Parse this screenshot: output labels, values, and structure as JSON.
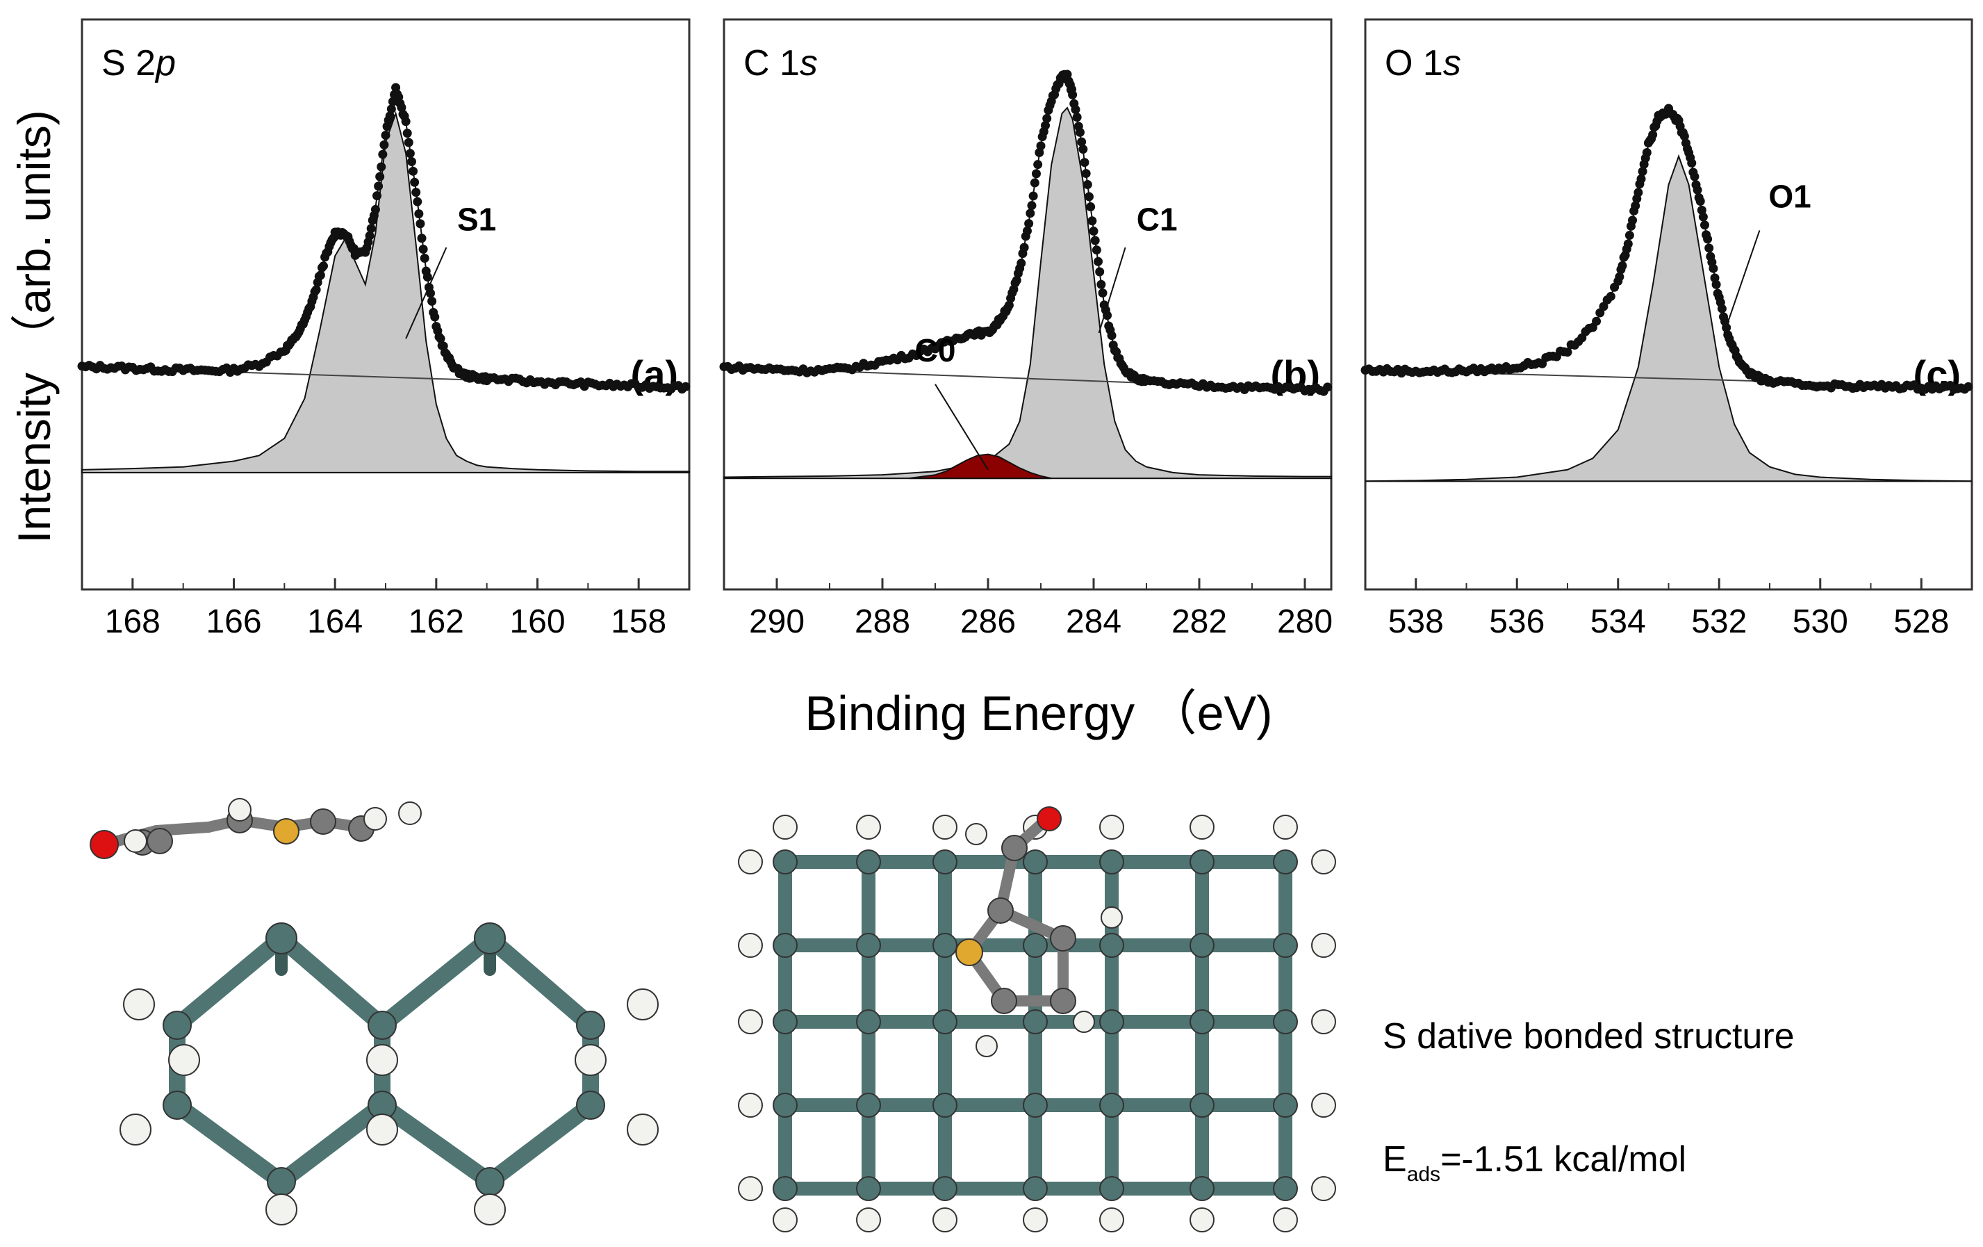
{
  "figure": {
    "ylabel": "Intensity （arb. units)",
    "xlabel": "Binding Energy （eV)",
    "structure_caption": "S dative bonded structure",
    "energy": {
      "E": "E",
      "sub": "ads",
      "value": "=-1.51 kcal/mol"
    }
  },
  "colors": {
    "data_marker": "#111111",
    "fill_main": "#c8c8c8",
    "fill_c0": "#8b0000",
    "si": "#4f7472",
    "carbon": "#7a7a7a",
    "sulfur": "#e0a82e",
    "oxygen": "#dd1111",
    "hydrogen": "#f2f2ee"
  },
  "chart_data": [
    {
      "type": "line",
      "panel_tag": "(a)",
      "title_main": "S 2",
      "title_italic": "p",
      "xlim": [
        169.0,
        157.0
      ],
      "xticks": [
        "168",
        "166",
        "164",
        "162",
        "160",
        "158"
      ],
      "xtick_values": [
        168,
        166,
        164,
        162,
        160,
        158
      ],
      "ylim": [
        0,
        1
      ],
      "component_label": "S1",
      "data_baseline": [
        0.39,
        0.355
      ],
      "data": {
        "x": [
          169,
          168.5,
          168,
          167.5,
          167,
          166.5,
          166,
          165.5,
          165,
          164.8,
          164.6,
          164.4,
          164.2,
          164,
          163.8,
          163.6,
          163.4,
          163.2,
          163,
          162.8,
          162.6,
          162.4,
          162.2,
          162,
          161.8,
          161.6,
          161.4,
          161.2,
          161,
          160.5,
          160,
          159.5,
          159,
          158.5,
          158,
          157.5,
          157
        ],
        "y": [
          0.39,
          0.39,
          0.388,
          0.386,
          0.385,
          0.384,
          0.385,
          0.395,
          0.42,
          0.44,
          0.47,
          0.52,
          0.58,
          0.625,
          0.625,
          0.59,
          0.59,
          0.67,
          0.8,
          0.88,
          0.82,
          0.7,
          0.56,
          0.46,
          0.41,
          0.385,
          0.375,
          0.372,
          0.37,
          0.367,
          0.364,
          0.362,
          0.36,
          0.358,
          0.357,
          0.356,
          0.355
        ]
      },
      "components": [
        {
          "name": "S1",
          "x": [
            169,
            168,
            167,
            166,
            165.5,
            165,
            164.6,
            164.3,
            164,
            163.8,
            163.6,
            163.4,
            163.2,
            163,
            162.8,
            162.6,
            162.4,
            162.2,
            162,
            161.8,
            161.6,
            161.4,
            161.2,
            161,
            160.5,
            160,
            159,
            158,
            157
          ],
          "y": [
            0.005,
            0.007,
            0.01,
            0.02,
            0.03,
            0.06,
            0.13,
            0.25,
            0.38,
            0.41,
            0.37,
            0.33,
            0.42,
            0.58,
            0.63,
            0.56,
            0.4,
            0.23,
            0.12,
            0.06,
            0.03,
            0.02,
            0.013,
            0.01,
            0.007,
            0.005,
            0.003,
            0.002,
            0.002
          ]
        }
      ],
      "component_callouts": [
        {
          "label": "S1",
          "label_at": [
            161.2,
            0.63
          ],
          "line_from": [
            161.8,
            0.6
          ],
          "line_to": [
            162.6,
            0.44
          ]
        }
      ],
      "component_baseline": 0.205
    },
    {
      "type": "line",
      "panel_tag": "(b)",
      "title_main": "C 1",
      "title_italic": "s",
      "xlim": [
        291.0,
        279.5
      ],
      "xticks": [
        "290",
        "288",
        "286",
        "284",
        "282",
        "280"
      ],
      "xtick_values": [
        290,
        288,
        286,
        284,
        282,
        280
      ],
      "ylim": [
        0,
        1
      ],
      "component_label": "C1",
      "data_baseline": [
        0.39,
        0.35
      ],
      "data": {
        "x": [
          291,
          290.5,
          290,
          289.5,
          289,
          288.5,
          288,
          287.5,
          287,
          286.6,
          286.3,
          286,
          285.8,
          285.6,
          285.4,
          285.2,
          285,
          284.8,
          284.6,
          284.5,
          284.4,
          284.2,
          284,
          283.8,
          283.6,
          283.4,
          283.2,
          283,
          282.5,
          282,
          281.5,
          281,
          280.5,
          280,
          279.5
        ],
        "y": [
          0.39,
          0.388,
          0.386,
          0.384,
          0.385,
          0.39,
          0.4,
          0.41,
          0.425,
          0.44,
          0.45,
          0.45,
          0.47,
          0.5,
          0.56,
          0.66,
          0.78,
          0.86,
          0.9,
          0.9,
          0.87,
          0.77,
          0.63,
          0.5,
          0.42,
          0.385,
          0.37,
          0.365,
          0.36,
          0.358,
          0.356,
          0.354,
          0.353,
          0.352,
          0.351
        ]
      },
      "components": [
        {
          "name": "C1",
          "x": [
            291,
            290,
            289,
            288,
            287,
            286,
            285.6,
            285.4,
            285.2,
            285,
            284.8,
            284.6,
            284.5,
            284.4,
            284.2,
            284,
            283.8,
            283.6,
            283.4,
            283.2,
            283,
            282.5,
            282,
            281,
            280,
            279.5
          ],
          "y": [
            0.002,
            0.003,
            0.004,
            0.006,
            0.012,
            0.03,
            0.06,
            0.1,
            0.2,
            0.38,
            0.55,
            0.64,
            0.65,
            0.63,
            0.52,
            0.36,
            0.2,
            0.1,
            0.05,
            0.03,
            0.02,
            0.01,
            0.006,
            0.004,
            0.003,
            0.003
          ]
        },
        {
          "name": "C0",
          "x": [
            287.5,
            287,
            286.8,
            286.6,
            286.4,
            286.2,
            286,
            285.8,
            285.6,
            285.4,
            285.2,
            285,
            284.8
          ],
          "y": [
            0.0,
            0.006,
            0.012,
            0.022,
            0.032,
            0.04,
            0.042,
            0.038,
            0.028,
            0.018,
            0.01,
            0.004,
            0.0
          ]
        }
      ],
      "component_callouts": [
        {
          "label": "C1",
          "label_at": [
            282.8,
            0.63
          ],
          "line_from": [
            283.4,
            0.6
          ],
          "line_to": [
            283.9,
            0.45
          ]
        },
        {
          "label": "C0",
          "label_at": [
            287.0,
            0.4
          ],
          "line_from": [
            287.0,
            0.36
          ],
          "line_to": [
            286.0,
            0.21
          ]
        }
      ],
      "component_baseline": 0.195
    },
    {
      "type": "line",
      "panel_tag": "(c)",
      "title_main": "O 1",
      "title_italic": "s",
      "xlim": [
        539.0,
        527.0
      ],
      "xticks": [
        "538",
        "536",
        "534",
        "532",
        "530",
        "528"
      ],
      "xtick_values": [
        538,
        536,
        534,
        532,
        530,
        528
      ],
      "ylim": [
        0,
        1
      ],
      "component_label": "O1",
      "data_baseline": [
        0.385,
        0.355
      ],
      "data": {
        "x": [
          539,
          538.5,
          538,
          537.5,
          537,
          536.5,
          536,
          535.5,
          535,
          534.5,
          534,
          533.8,
          533.6,
          533.4,
          533.2,
          533,
          532.8,
          532.6,
          532.4,
          532.2,
          532,
          531.8,
          531.6,
          531.4,
          531.2,
          531,
          530.5,
          530,
          529.5,
          529,
          528.5,
          528,
          527.5,
          527
        ],
        "y": [
          0.385,
          0.384,
          0.383,
          0.383,
          0.384,
          0.386,
          0.39,
          0.4,
          0.42,
          0.46,
          0.54,
          0.61,
          0.7,
          0.78,
          0.83,
          0.84,
          0.82,
          0.77,
          0.69,
          0.6,
          0.51,
          0.44,
          0.4,
          0.38,
          0.37,
          0.365,
          0.36,
          0.358,
          0.357,
          0.356,
          0.356,
          0.355,
          0.355,
          0.355
        ]
      },
      "components": [
        {
          "name": "O1",
          "x": [
            539,
            538,
            537,
            536,
            535,
            534.5,
            534,
            533.6,
            533.3,
            533,
            532.8,
            532.6,
            532.3,
            532,
            531.7,
            531.4,
            531,
            530.5,
            530,
            529,
            528,
            527
          ],
          "y": [
            0.0,
            0.001,
            0.003,
            0.007,
            0.02,
            0.04,
            0.09,
            0.2,
            0.35,
            0.52,
            0.57,
            0.52,
            0.36,
            0.2,
            0.1,
            0.05,
            0.025,
            0.012,
            0.007,
            0.003,
            0.001,
            0.0
          ]
        }
      ],
      "component_callouts": [
        {
          "label": "O1",
          "label_at": [
            530.6,
            0.67
          ],
          "line_from": [
            531.2,
            0.63
          ],
          "line_to": [
            531.9,
            0.45
          ]
        }
      ],
      "component_baseline": 0.19
    }
  ]
}
